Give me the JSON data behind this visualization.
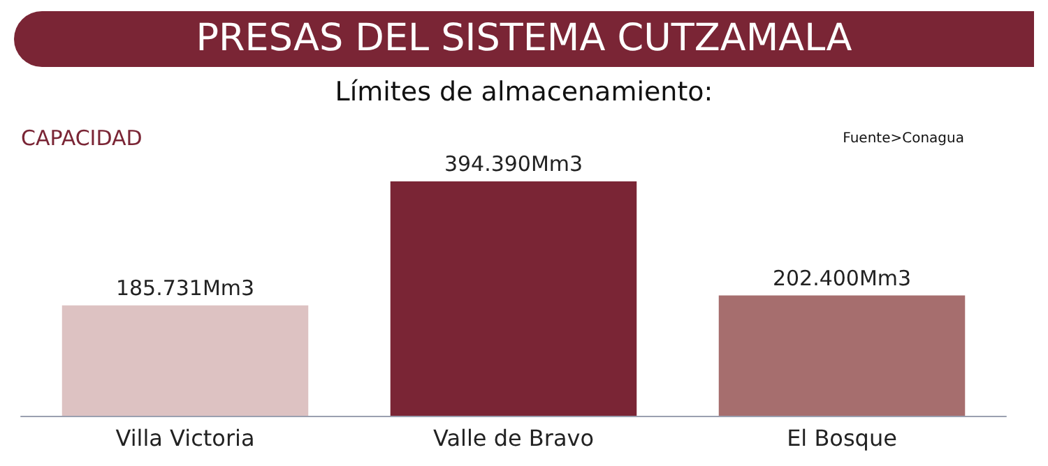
{
  "chart_data": {
    "type": "bar",
    "title": "PRESAS DEL SISTEMA CUTZAMALA",
    "subtitle": "Límites de almacenamiento:",
    "ylabel": "CAPACIDAD",
    "annotations": [
      "Fuente>Conagua"
    ],
    "categories": [
      "Villa Victoria",
      "Valle de Bravo",
      "El Bosque"
    ],
    "values": [
      185.731,
      394.39,
      202.4
    ],
    "colors": [
      "#ddc2c2",
      "#7a2535",
      "#a66e6e"
    ],
    "value_labels": [
      "185.731Mm3",
      "394.390Mm3",
      "202.400Mm3"
    ]
  }
}
